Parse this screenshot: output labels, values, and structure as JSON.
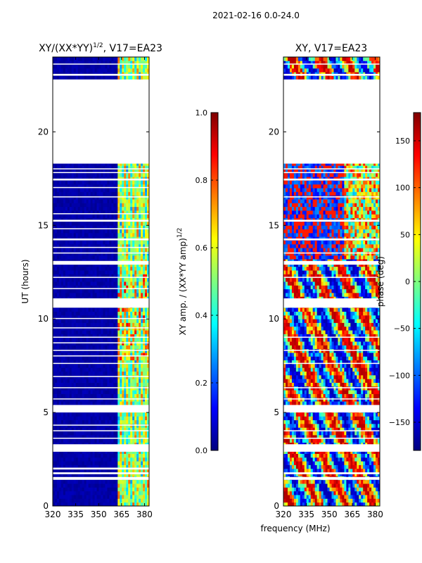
{
  "suptitle": "2021-02-16 0.0-24.0",
  "xlabel": "frequency (MHz)",
  "colors": {
    "jet": [
      "#00007f",
      "#0000ff",
      "#007fff",
      "#00ffff",
      "#7fff7f",
      "#ffff00",
      "#ff7f00",
      "#ff0000",
      "#7f0000"
    ],
    "gap": "#ffffff",
    "frame": "#000000"
  },
  "chart_data": [
    {
      "type": "heatmap",
      "title": "XY/(XX*YY)",
      "title_exponent": "1/2",
      "title_suffix": ", V17=EA23",
      "xlabel": "",
      "ylabel": "UT (hours)",
      "xlim": [
        320,
        383
      ],
      "ylim": [
        0,
        24
      ],
      "xticks": [
        "320",
        "335",
        "350",
        "365",
        "380"
      ],
      "xtick_values": [
        320,
        335,
        350,
        365,
        380
      ],
      "yticks": [
        "0",
        "5",
        "10",
        "15",
        "20"
      ],
      "ytick_values": [
        0,
        5,
        10,
        15,
        20
      ],
      "value_kind": "amplitude",
      "colorbar": {
        "label": "XY amp. / (XX*YY amp)",
        "label_exponent": "1/2",
        "range": [
          0.0,
          1.0
        ],
        "ticks": [
          "0.0",
          "0.2",
          "0.4",
          "0.6",
          "0.8",
          "1.0"
        ],
        "tick_values": [
          0.0,
          0.2,
          0.4,
          0.6,
          0.8,
          1.0
        ]
      },
      "gaps_hours": [
        [
          18.3,
          22.8
        ],
        [
          1.4,
          1.55
        ],
        [
          1.7,
          1.8
        ],
        [
          1.95,
          2.05
        ],
        [
          2.9,
          3.3
        ],
        [
          3.6,
          3.65
        ],
        [
          4.0,
          4.05
        ],
        [
          4.3,
          4.35
        ],
        [
          5.0,
          5.4
        ],
        [
          5.7,
          5.75
        ],
        [
          6.3,
          6.35
        ],
        [
          6.9,
          6.95
        ],
        [
          7.6,
          7.65
        ],
        [
          8.0,
          8.05
        ],
        [
          8.3,
          8.35
        ],
        [
          8.7,
          8.75
        ],
        [
          9.0,
          9.05
        ],
        [
          9.5,
          9.55
        ],
        [
          10.0,
          10.05
        ],
        [
          10.6,
          11.1
        ],
        [
          11.6,
          11.65
        ],
        [
          12.2,
          12.25
        ],
        [
          12.9,
          13.1
        ],
        [
          13.5,
          13.55
        ],
        [
          13.8,
          13.85
        ],
        [
          14.2,
          14.3
        ],
        [
          14.8,
          14.85
        ],
        [
          15.2,
          15.3
        ],
        [
          15.6,
          15.65
        ],
        [
          16.5,
          16.55
        ],
        [
          17.0,
          17.05
        ],
        [
          17.4,
          17.5
        ],
        [
          17.8,
          17.85
        ],
        [
          18.0,
          18.05
        ],
        [
          23.0,
          23.1
        ],
        [
          23.6,
          23.65
        ]
      ],
      "bright_band_mhz": [
        362,
        383
      ]
    },
    {
      "type": "heatmap",
      "title": "XY, V17=EA23",
      "title_exponent": "",
      "title_suffix": "",
      "xlabel": "",
      "ylabel": "",
      "xlim": [
        320,
        383
      ],
      "ylim": [
        0,
        24
      ],
      "xticks": [
        "320",
        "335",
        "350",
        "365",
        "380"
      ],
      "xtick_values": [
        320,
        335,
        350,
        365,
        380
      ],
      "yticks": [
        "0",
        "5",
        "10",
        "15",
        "20"
      ],
      "ytick_values": [
        0,
        5,
        10,
        15,
        20
      ],
      "value_kind": "phase",
      "colorbar": {
        "label": "phase (deg)",
        "label_exponent": "",
        "range": [
          -180,
          180
        ],
        "ticks": [
          "−150",
          "−100",
          "−50",
          "0",
          "50",
          "100",
          "150"
        ],
        "tick_values": [
          -150,
          -100,
          -50,
          0,
          50,
          100,
          150
        ]
      },
      "gaps_hours": [
        [
          18.3,
          22.8
        ],
        [
          1.4,
          1.55
        ],
        [
          1.7,
          1.8
        ],
        [
          2.9,
          3.3
        ],
        [
          3.6,
          3.65
        ],
        [
          4.0,
          4.05
        ],
        [
          5.0,
          5.4
        ],
        [
          5.7,
          5.75
        ],
        [
          6.3,
          6.35
        ],
        [
          7.6,
          7.65
        ],
        [
          8.3,
          8.35
        ],
        [
          9.0,
          9.05
        ],
        [
          10.6,
          11.1
        ],
        [
          12.2,
          12.25
        ],
        [
          12.9,
          13.1
        ],
        [
          13.5,
          13.55
        ],
        [
          14.2,
          14.3
        ],
        [
          15.2,
          15.3
        ],
        [
          16.5,
          16.55
        ],
        [
          17.4,
          17.5
        ],
        [
          17.8,
          17.85
        ],
        [
          18.0,
          18.05
        ],
        [
          23.0,
          23.1
        ],
        [
          23.6,
          23.65
        ]
      ],
      "bright_band_mhz": [
        320,
        383
      ]
    }
  ]
}
